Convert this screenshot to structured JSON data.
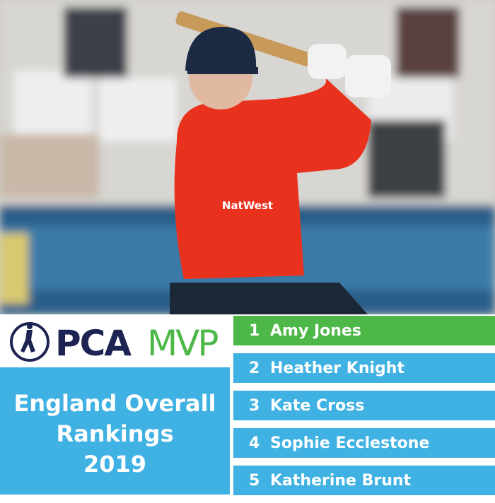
{
  "photo": {
    "shirt_sponsor": "NatWest"
  },
  "logo": {
    "pca": "PCA",
    "mvp": "MVP"
  },
  "title_lines": [
    "England Overall",
    "Rankings",
    "2019"
  ],
  "rankings": [
    {
      "rank": 1,
      "name": "Amy Jones"
    },
    {
      "rank": 2,
      "name": "Heather Knight"
    },
    {
      "rank": 3,
      "name": "Kate Cross"
    },
    {
      "rank": 4,
      "name": "Sophie Ecclestone"
    },
    {
      "rank": 5,
      "name": "Katherine Brunt"
    }
  ]
}
